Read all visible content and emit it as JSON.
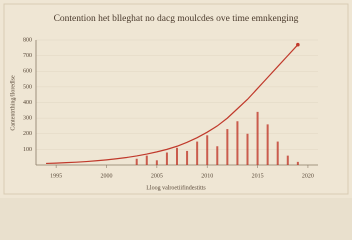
{
  "chart_data": {
    "type": "line",
    "title": "Contention het blleghat no dacg moulcdes ove time emnkenging",
    "x_label": "Lloog valroetiifindestitts",
    "y_label": "Cantentrthing/lloredlse",
    "x": [
      1994,
      1995,
      1996,
      1997,
      1998,
      1999,
      2000,
      2001,
      2002,
      2003,
      2004,
      2005,
      2006,
      2007,
      2008,
      2009,
      2010,
      2011,
      2012,
      2013,
      2014,
      2015,
      2016,
      2017,
      2018,
      2019
    ],
    "series": [
      {
        "type": "line",
        "color": "#c0392b",
        "values": [
          10,
          12,
          15,
          18,
          22,
          27,
          33,
          40,
          48,
          58,
          70,
          84,
          100,
          120,
          145,
          175,
          210,
          250,
          300,
          360,
          420,
          490,
          560,
          630,
          700,
          770
        ]
      },
      {
        "type": "bar",
        "color": "#c0392b",
        "values": [
          null,
          null,
          null,
          null,
          null,
          null,
          null,
          null,
          null,
          40,
          60,
          30,
          80,
          110,
          90,
          150,
          190,
          120,
          230,
          280,
          200,
          340,
          260,
          150,
          60,
          20
        ]
      }
    ],
    "xlim": [
      1993,
      2021
    ],
    "xticks": [
      1995,
      2000,
      2005,
      2010,
      2015,
      2020
    ],
    "ylim": [
      0,
      800
    ],
    "yticks": [
      100,
      200,
      300,
      400,
      500,
      600,
      700,
      800
    ],
    "grid": true
  }
}
